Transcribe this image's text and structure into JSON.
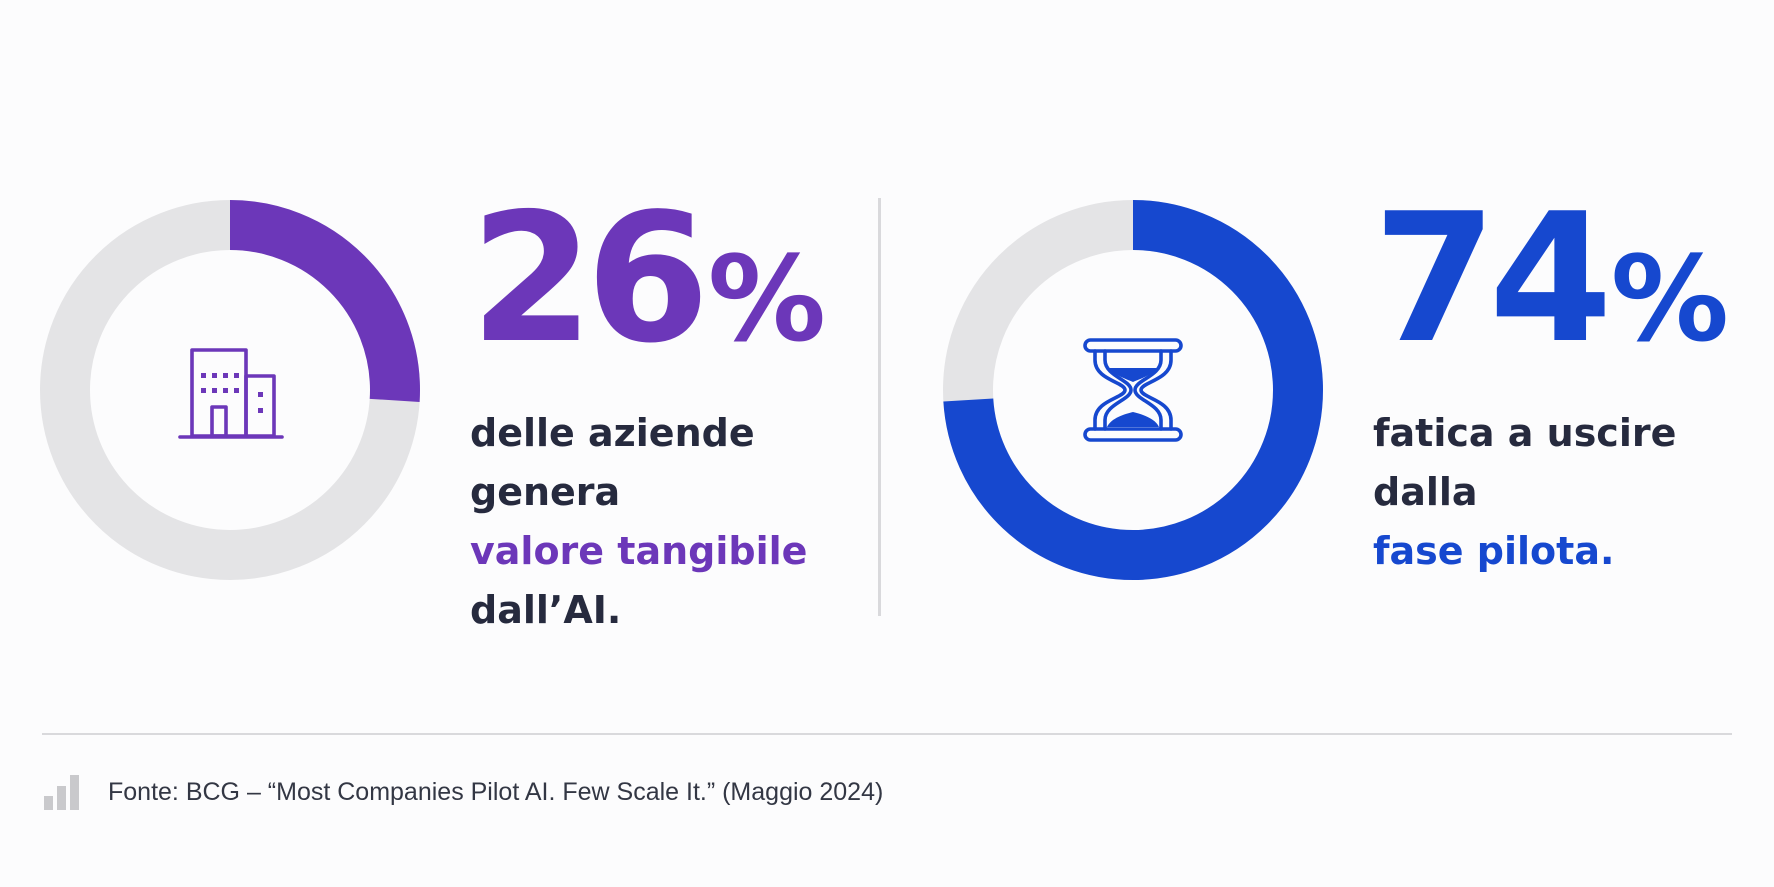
{
  "colors": {
    "purple": "#6c37b9",
    "blue": "#1648cf",
    "track": "#e4e4e6",
    "text_dark": "#262a3e",
    "source_text": "#333744",
    "divider": "#d9d9dc"
  },
  "chart_data": [
    {
      "type": "pie",
      "style": "donut",
      "values": [
        26,
        74
      ],
      "highlight_value": 26,
      "highlight_color": "#6c37b9",
      "track_color": "#e4e4e6",
      "center_icon": "office-building-icon",
      "big_number": "26",
      "percent_sign": "%",
      "description_lines": [
        {
          "text": "delle aziende",
          "highlight": false
        },
        {
          "text": "genera",
          "highlight": false
        },
        {
          "text": "valore tangibile",
          "highlight": true
        },
        {
          "text": "dall’AI.",
          "highlight": false
        }
      ]
    },
    {
      "type": "pie",
      "style": "donut",
      "values": [
        74,
        26
      ],
      "highlight_value": 74,
      "highlight_color": "#1648cf",
      "track_color": "#e4e4e6",
      "center_icon": "hourglass-icon",
      "big_number": "74",
      "percent_sign": "%",
      "description_lines": [
        {
          "text": "fatica a uscire",
          "highlight": false
        },
        {
          "text": "dalla",
          "highlight": false
        },
        {
          "text": "fase pilota.",
          "highlight": true
        }
      ]
    }
  ],
  "source": {
    "icon": "bar-chart-icon",
    "text": "Fonte: BCG – “Most Companies Pilot AI. Few Scale It.” (Maggio 2024)"
  }
}
